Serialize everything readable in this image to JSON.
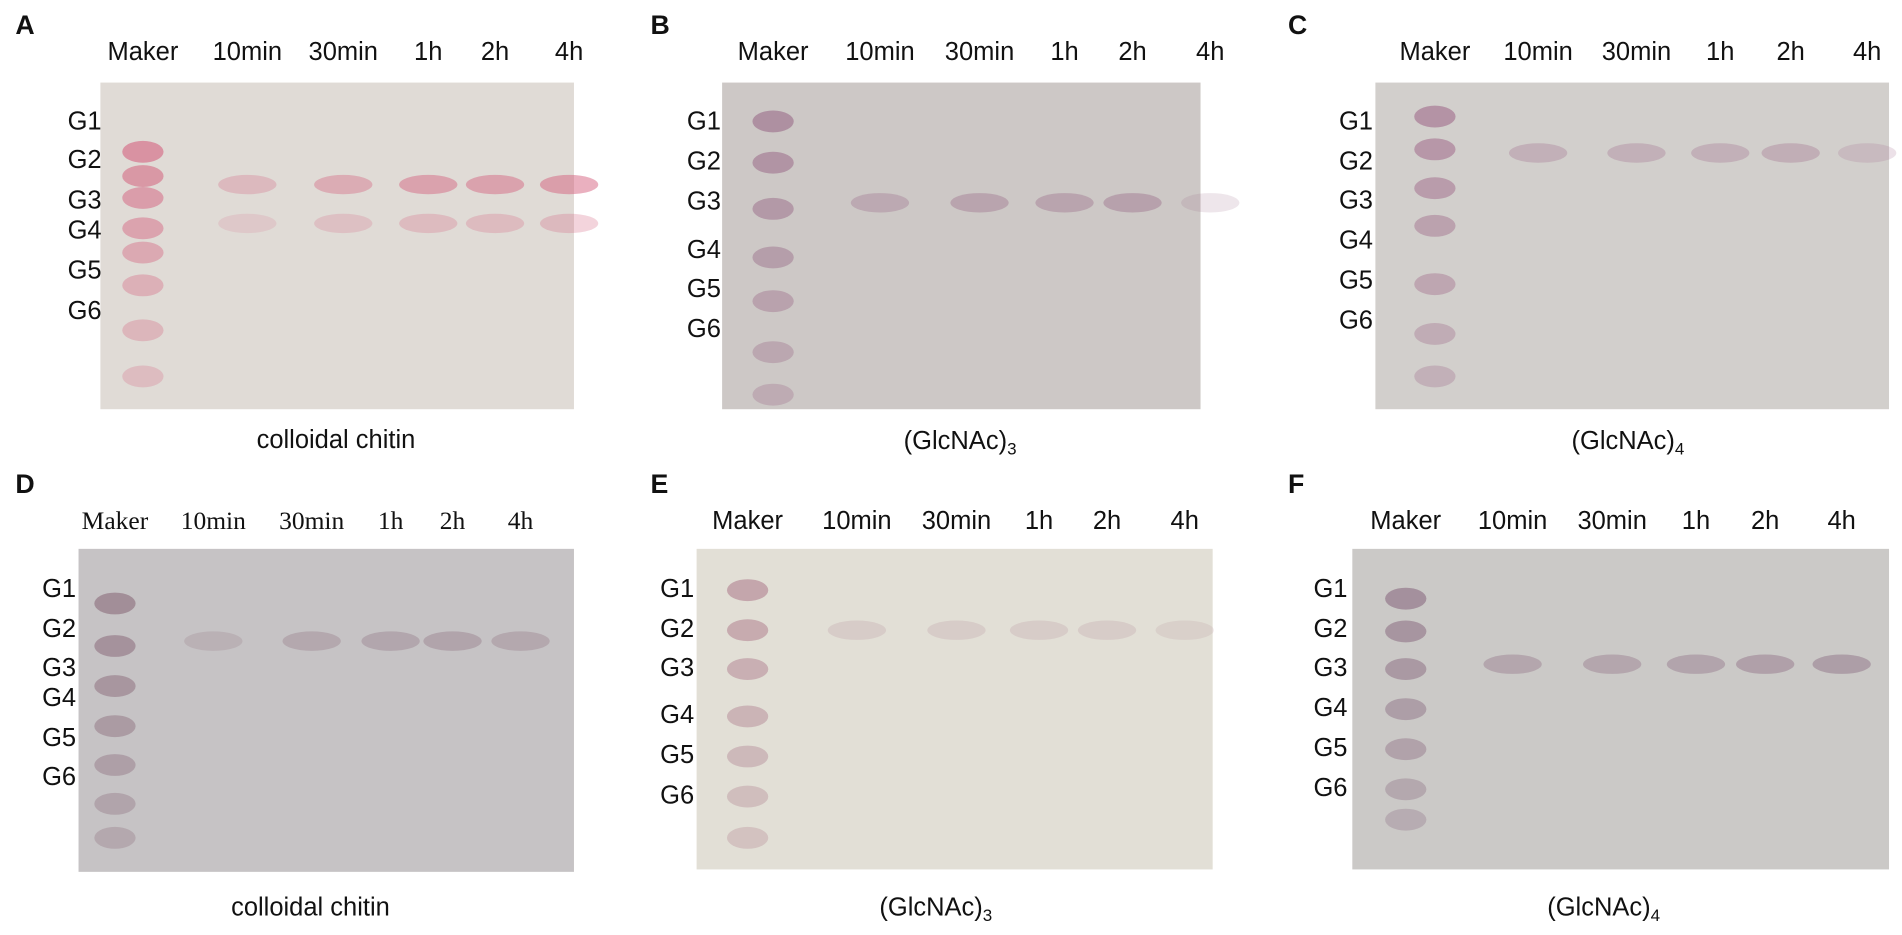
{
  "panels": [
    {
      "label": "A",
      "lanes": [
        "Maker",
        "10min",
        "30min",
        "1h",
        "2h",
        "4h"
      ],
      "rows": [
        "G1",
        "G2",
        "G3",
        "G4",
        "G5",
        "G6"
      ],
      "caption": "colloidal chitin"
    },
    {
      "label": "B",
      "lanes": [
        "Maker",
        "10min",
        "30min",
        "1h",
        "2h",
        "4h"
      ],
      "rows": [
        "G1",
        "G2",
        "G3",
        "G4",
        "G5",
        "G6"
      ],
      "caption": "(GlcNAc)",
      "caption_subscript": "3"
    },
    {
      "label": "C",
      "lanes": [
        "Maker",
        "10min",
        "30min",
        "1h",
        "2h",
        "4h"
      ],
      "rows": [
        "G1",
        "G2",
        "G3",
        "G4",
        "G5",
        "G6"
      ],
      "caption": "(GlcNAc)",
      "caption_subscript": "4"
    },
    {
      "label": "D",
      "lanes": [
        "Maker",
        "10min",
        "30min",
        "1h",
        "2h",
        "4h"
      ],
      "rows": [
        "G1",
        "G2",
        "G3",
        "G4",
        "G5",
        "G6"
      ],
      "caption": "colloidal chitin"
    },
    {
      "label": "E",
      "lanes": [
        "Maker",
        "10min",
        "30min",
        "1h",
        "2h",
        "4h"
      ],
      "rows": [
        "G1",
        "G2",
        "G3",
        "G4",
        "G5",
        "G6"
      ],
      "caption": "(GlcNAc)",
      "caption_subscript": "3"
    },
    {
      "label": "F",
      "lanes": [
        "Maker",
        "10min",
        "30min",
        "1h",
        "2h",
        "4h"
      ],
      "rows": [
        "G1",
        "G2",
        "G3",
        "G4",
        "G5",
        "G6"
      ],
      "caption": "(GlcNAc)",
      "caption_subscript": "4"
    }
  ]
}
